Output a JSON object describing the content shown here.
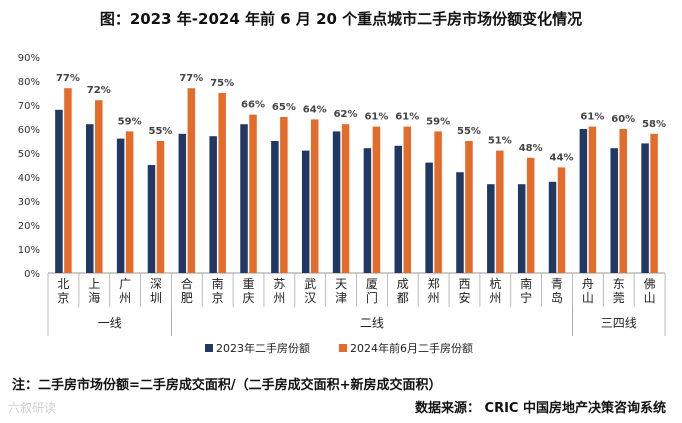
{
  "chart_data": {
    "type": "bar",
    "title": "图：2023 年-2024 年前 6 月 20 个重点城市二手房市场份额变化情况",
    "categories": [
      "北京",
      "上海",
      "广州",
      "深圳",
      "合肥",
      "南京",
      "重庆",
      "苏州",
      "武汉",
      "天津",
      "厦门",
      "成都",
      "郑州",
      "西安",
      "杭州",
      "南宁",
      "青岛",
      "舟山",
      "东莞",
      "佛山"
    ],
    "groups": [
      {
        "label": "一线",
        "count": 4
      },
      {
        "label": "二线",
        "count": 13
      },
      {
        "label": "三四线",
        "count": 3
      }
    ],
    "series": [
      {
        "name": "2023年二手房份额",
        "color": "#1f3864",
        "values": [
          68,
          62,
          56,
          45,
          58,
          57,
          62,
          55,
          51,
          59,
          52,
          53,
          46,
          42,
          37,
          37,
          38,
          60,
          52,
          54
        ]
      },
      {
        "name": "2024年前6月二手房份额",
        "color": "#e46c2b",
        "values": [
          77,
          72,
          59,
          55,
          77,
          75,
          66,
          65,
          64,
          62,
          61,
          61,
          59,
          55,
          51,
          48,
          44,
          61,
          60,
          58
        ]
      }
    ],
    "data_labels": [
      "77%",
      "72%",
      "59%",
      "55%",
      "77%",
      "75%",
      "66%",
      "65%",
      "64%",
      "62%",
      "61%",
      "61%",
      "59%",
      "55%",
      "51%",
      "48%",
      "44%",
      "61%",
      "60%",
      "58%"
    ],
    "y_ticks": [
      "0%",
      "10%",
      "20%",
      "30%",
      "40%",
      "50%",
      "60%",
      "70%",
      "80%",
      "90%"
    ],
    "ylim": [
      0,
      90
    ],
    "legend_position": "bottom"
  },
  "footer": {
    "note": "注：二手房市场份额=二手房成交面积/（二手房成交面积+新房成交面积）",
    "source": "数据来源： CRIC 中国房地产决策咨询系统",
    "watermark": "六叙研读"
  }
}
